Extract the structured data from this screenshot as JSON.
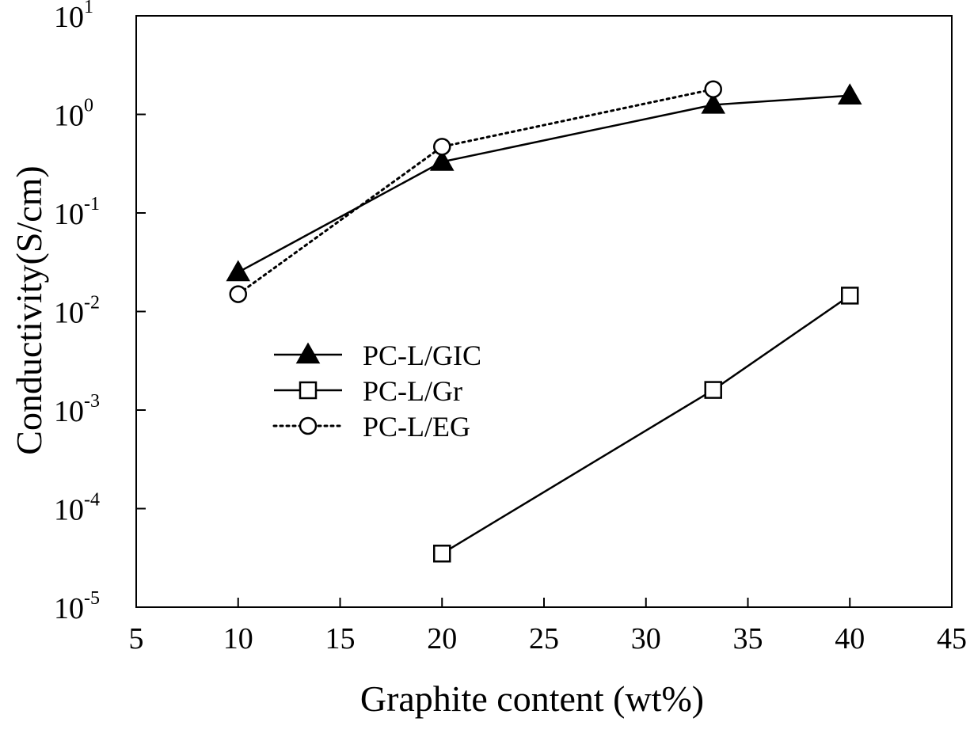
{
  "chart_data": {
    "type": "line",
    "title": "",
    "xlabel": "Graphite content (wt%)",
    "ylabel": "Conductivity(S/cm)",
    "xlim": [
      5,
      45
    ],
    "ylim": [
      1e-05,
      10
    ],
    "yscale": "log",
    "xticks": [
      {
        "value": 5,
        "label": "5"
      },
      {
        "value": 10,
        "label": "10"
      },
      {
        "value": 15,
        "label": "15"
      },
      {
        "value": 20,
        "label": "20"
      },
      {
        "value": 25,
        "label": "25"
      },
      {
        "value": 30,
        "label": "30"
      },
      {
        "value": 35,
        "label": "35"
      },
      {
        "value": 40,
        "label": "40"
      },
      {
        "value": 45,
        "label": "45"
      }
    ],
    "yticks": [
      {
        "value": 10,
        "base": "10",
        "exp": "1"
      },
      {
        "value": 1,
        "base": "10",
        "exp": "0"
      },
      {
        "value": 0.1,
        "base": "10",
        "exp": "-1"
      },
      {
        "value": 0.01,
        "base": "10",
        "exp": "-2"
      },
      {
        "value": 0.001,
        "base": "10",
        "exp": "-3"
      },
      {
        "value": 0.0001,
        "base": "10",
        "exp": "-4"
      },
      {
        "value": 1e-05,
        "base": "10",
        "exp": "-5"
      }
    ],
    "grid": false,
    "legend_position": "center-left",
    "series": [
      {
        "name": "PC-L/GIC",
        "marker": "filled-triangle",
        "line": "solid",
        "color": "#000000",
        "x": [
          10,
          20,
          33.3,
          40
        ],
        "y": [
          0.025,
          0.33,
          1.25,
          1.55
        ]
      },
      {
        "name": "PC-L/Gr",
        "marker": "open-square",
        "line": "solid",
        "color": "#000000",
        "x": [
          20,
          33.3,
          40
        ],
        "y": [
          3.5e-05,
          0.0016,
          0.0145
        ]
      },
      {
        "name": "PC-L/EG",
        "marker": "open-circle",
        "line": "dotted",
        "color": "#000000",
        "x": [
          10,
          20,
          33.3
        ],
        "y": [
          0.015,
          0.47,
          1.8
        ]
      }
    ]
  }
}
